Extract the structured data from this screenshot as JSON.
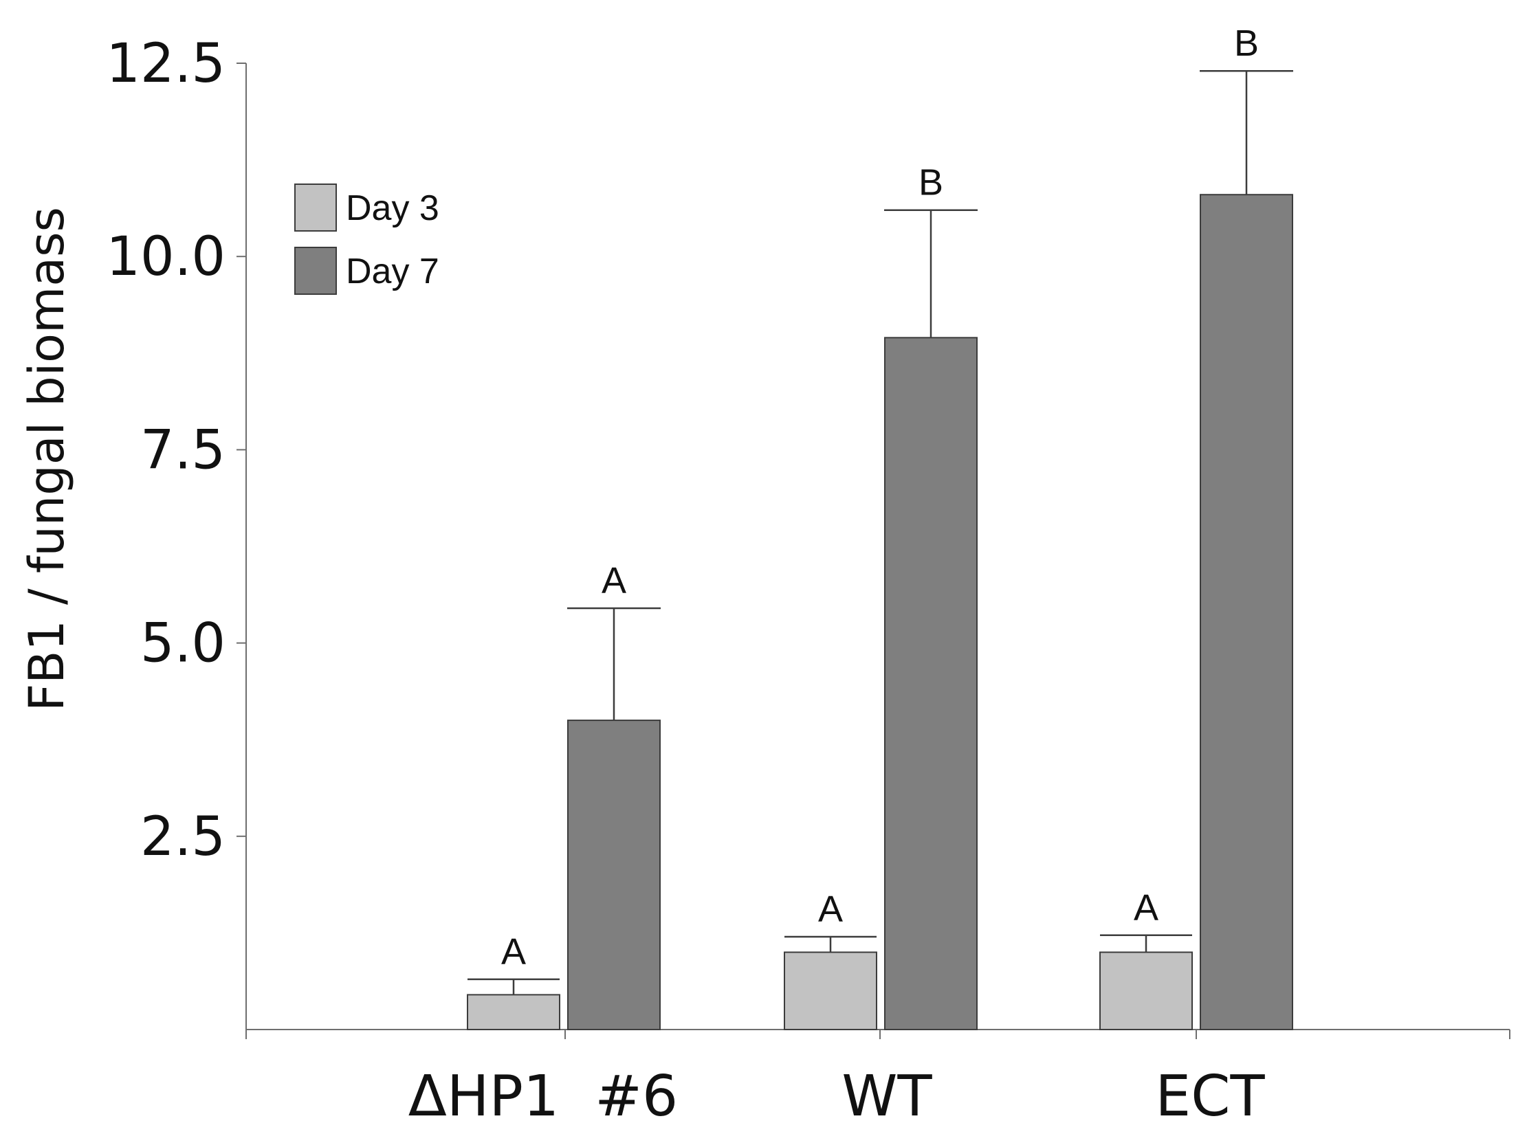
{
  "chart_data": {
    "type": "bar",
    "title": "",
    "xlabel": "",
    "ylabel": "FB1 / fungal biomass",
    "ylim": [
      0,
      12.5
    ],
    "yticks": [
      "2.5",
      "5.0",
      "7.5",
      "10.0",
      "12.5"
    ],
    "categories": [
      "ΔHP1  #6",
      "WT",
      "ECT"
    ],
    "series": [
      {
        "name": "Day 3",
        "color": "#c2c2c2",
        "values": [
          0.45,
          1.0,
          1.0
        ],
        "errors": [
          0.2,
          0.2,
          0.22
        ],
        "significance": [
          "A",
          "A",
          "A"
        ]
      },
      {
        "name": "Day 7",
        "color": "#7f7f7f",
        "values": [
          4.0,
          8.95,
          10.8
        ],
        "errors": [
          1.45,
          1.65,
          1.6
        ],
        "significance": [
          "A",
          "B",
          "B"
        ]
      }
    ],
    "legend": {
      "position": "top-left",
      "entries": [
        "Day 3",
        "Day 7"
      ]
    },
    "grid": false
  }
}
